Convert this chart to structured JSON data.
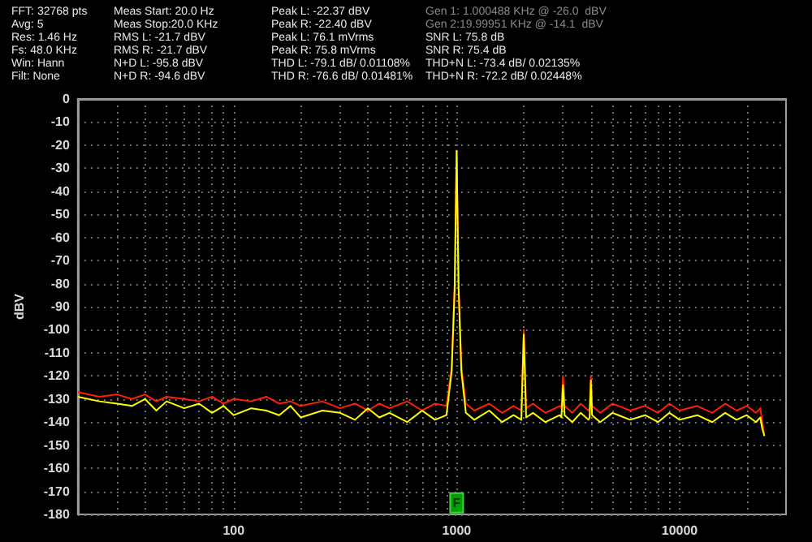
{
  "chart_data": {
    "type": "line",
    "ylabel": "dBV",
    "annotations": [
      "FFT: 32768 pts",
      "Avg: 5",
      "Res: 1.46 Hz",
      "Fs: 48.0 KHz",
      "Win: Hann",
      "Filt: None",
      "Meas Start: 20.0 Hz",
      "Meas Stop:20.0 KHz",
      "RMS L: -21.7 dBV",
      "RMS R: -21.7 dBV",
      "N+D L: -95.8 dBV",
      "N+D R: -94.6 dBV",
      "Peak L: -22.37 dBV",
      "Peak R: -22.40 dBV",
      "Peak L: 76.1 mVrms",
      "Peak R: 75.8 mVrms",
      "THD L: -79.1 dB/ 0.01108%",
      "THD R: -76.6 dB/ 0.01481%",
      "Gen 1: 1.000488 KHz @ -26.0  dBV",
      "Gen 2:19.99951 KHz @ -14.1  dBV",
      "SNR L: 75.8 dB",
      "SNR R: 75.4 dB",
      "THD+N L: -73.4 dB/ 0.02135%",
      "THD+N R: -72.2 dB/ 0.02448%",
      {
        "text": "F",
        "x": 1000,
        "y": -175
      }
    ],
    "x": [
      20,
      25,
      30,
      35,
      40,
      45,
      50,
      60,
      70,
      80,
      90,
      100,
      120,
      140,
      160,
      180,
      200,
      250,
      300,
      350,
      400,
      450,
      500,
      600,
      700,
      800,
      900,
      950,
      980,
      1000,
      1020,
      1050,
      1100,
      1200,
      1400,
      1600,
      1800,
      1950,
      2000,
      2050,
      2200,
      2500,
      2900,
      2950,
      3000,
      3050,
      3300,
      3600,
      3900,
      3950,
      4000,
      4050,
      4400,
      5000,
      6000,
      7000,
      8000,
      9000,
      10000,
      12000,
      14000,
      16000,
      18000,
      20000,
      22000,
      23000,
      23500,
      24000
    ],
    "series": [
      {
        "color": "#ff2000",
        "values": [
          -127,
          -129,
          -128,
          -130,
          -128,
          -131,
          -129,
          -130,
          -131,
          -129,
          -132,
          -130,
          -131,
          -129,
          -132,
          -131,
          -133,
          -131,
          -134,
          -132,
          -135,
          -132,
          -134,
          -131,
          -135,
          -132,
          -133,
          -116,
          -80,
          -22.4,
          -80,
          -116,
          -132,
          -135,
          -132,
          -136,
          -133,
          -135,
          -100,
          -134,
          -132,
          -136,
          -133,
          -134,
          -120,
          -133,
          -136,
          -132,
          -135,
          -134,
          -120,
          -133,
          -136,
          -132,
          -135,
          -133,
          -136,
          -132,
          -135,
          -133,
          -136,
          -132,
          -135,
          -133,
          -136,
          -134,
          -140,
          -146
        ]
      },
      {
        "color": "#ffff00",
        "values": [
          -129,
          -131,
          -132,
          -133,
          -130,
          -135,
          -131,
          -134,
          -132,
          -136,
          -133,
          -137,
          -134,
          -135,
          -137,
          -133,
          -138,
          -135,
          -136,
          -139,
          -134,
          -138,
          -136,
          -140,
          -135,
          -139,
          -137,
          -118,
          -82,
          -22.4,
          -82,
          -118,
          -136,
          -139,
          -135,
          -140,
          -137,
          -139,
          -102,
          -138,
          -136,
          -140,
          -137,
          -138,
          -124,
          -137,
          -140,
          -136,
          -139,
          -138,
          -122,
          -137,
          -140,
          -136,
          -139,
          -137,
          -140,
          -136,
          -139,
          -137,
          -140,
          -136,
          -139,
          -137,
          -140,
          -138,
          -143,
          -146
        ]
      }
    ],
    "log": "x",
    "xlim": [
      20,
      30000
    ],
    "xticks": [
      {
        "value": 20,
        "label": null
      },
      {
        "value": 30,
        "label": null
      },
      {
        "value": 40,
        "label": null
      },
      {
        "value": 50,
        "label": null
      },
      {
        "value": 60,
        "label": null
      },
      {
        "value": 70,
        "label": null
      },
      {
        "value": 80,
        "label": null
      },
      {
        "value": 90,
        "label": null
      },
      100,
      {
        "value": 200,
        "label": null
      },
      {
        "value": 300,
        "label": null
      },
      {
        "value": 400,
        "label": null
      },
      {
        "value": 500,
        "label": null
      },
      {
        "value": 600,
        "label": null
      },
      {
        "value": 700,
        "label": null
      },
      {
        "value": 800,
        "label": null
      },
      {
        "value": 900,
        "label": null
      },
      1000,
      {
        "value": 2000,
        "label": null
      },
      {
        "value": 3000,
        "label": null
      },
      {
        "value": 4000,
        "label": null
      },
      {
        "value": 5000,
        "label": null
      },
      {
        "value": 6000,
        "label": null
      },
      {
        "value": 7000,
        "label": null
      },
      {
        "value": 8000,
        "label": null
      },
      {
        "value": 9000,
        "label": null
      },
      10000,
      {
        "value": 20000,
        "label": null
      }
    ],
    "ylim": [
      -180,
      0
    ],
    "yticks": [
      0,
      -10,
      -20,
      -30,
      -40,
      -50,
      -60,
      -70,
      -80,
      -90,
      -100,
      -110,
      -120,
      -130,
      -140,
      -150,
      -160,
      -170,
      -180
    ],
    "grid": true,
    "marker": "none",
    "line_style": "solid"
  }
}
